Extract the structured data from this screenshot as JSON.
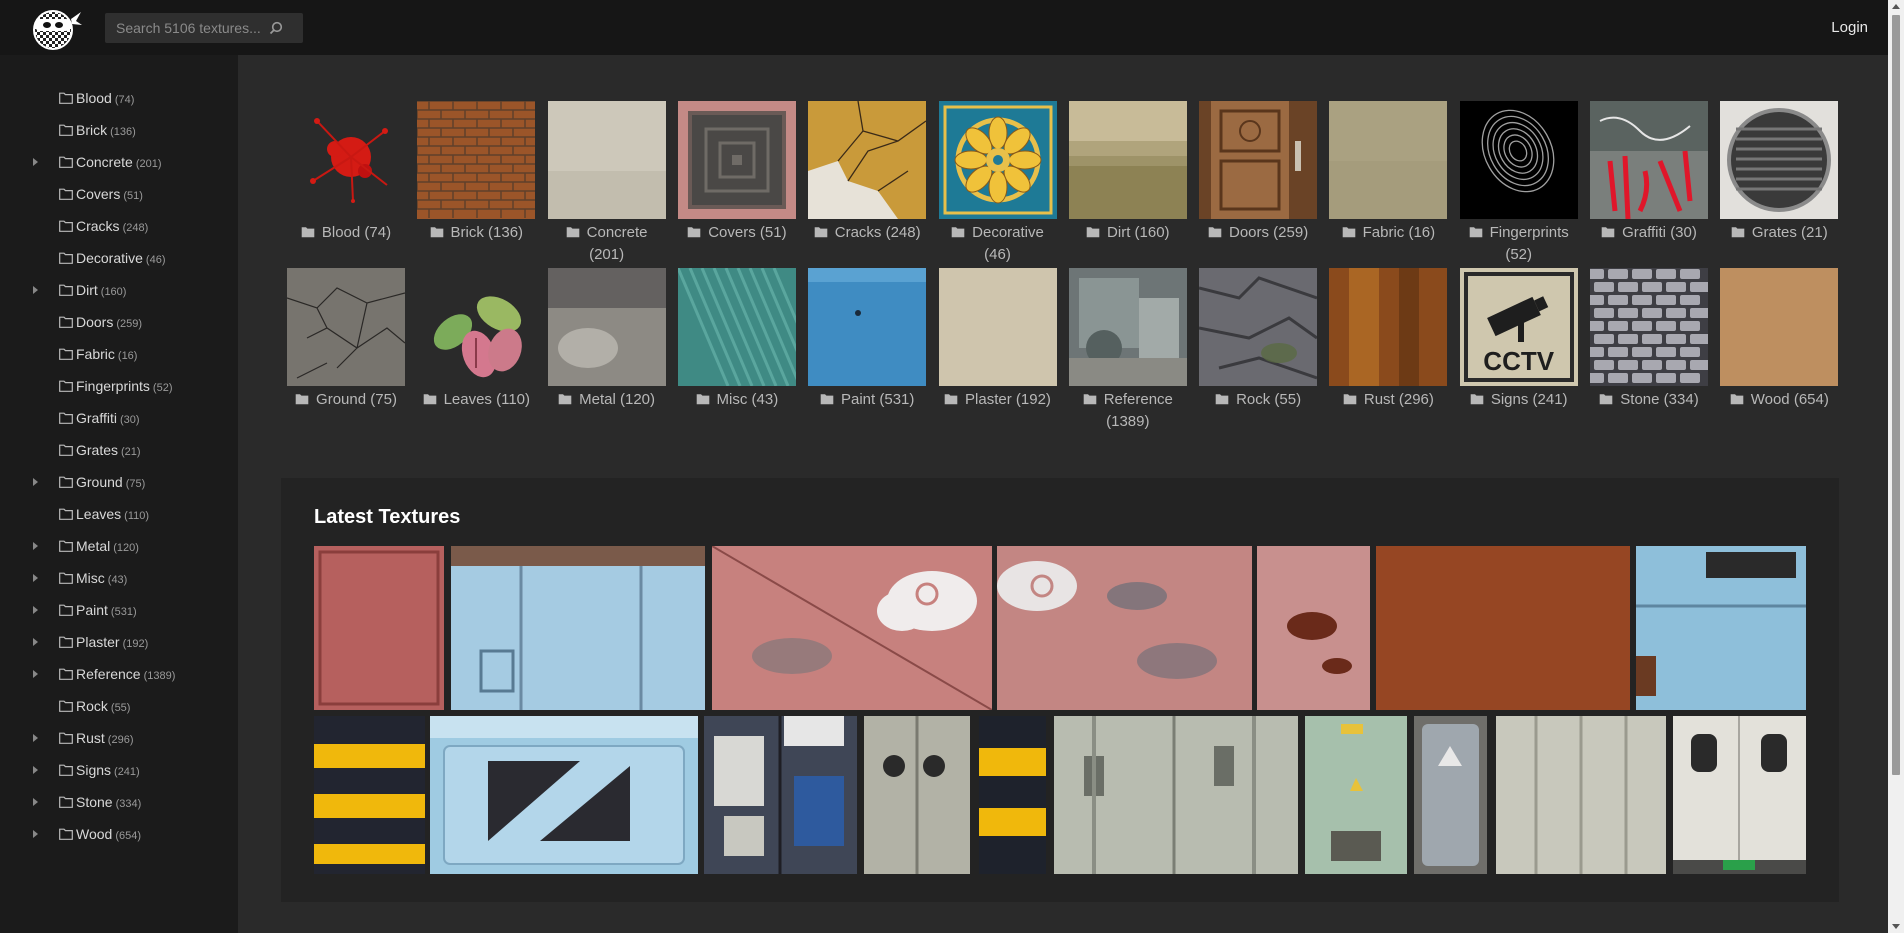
{
  "header": {
    "logo_name": "ninja-checker-logo",
    "search_placeholder": "Search 5106 textures...",
    "login_label": "Login"
  },
  "sidebar": {
    "items": [
      {
        "label": "Blood",
        "count": "(74)",
        "expandable": false
      },
      {
        "label": "Brick",
        "count": "(136)",
        "expandable": false
      },
      {
        "label": "Concrete",
        "count": "(201)",
        "expandable": true
      },
      {
        "label": "Covers",
        "count": "(51)",
        "expandable": false
      },
      {
        "label": "Cracks",
        "count": "(248)",
        "expandable": false
      },
      {
        "label": "Decorative",
        "count": "(46)",
        "expandable": false
      },
      {
        "label": "Dirt",
        "count": "(160)",
        "expandable": true
      },
      {
        "label": "Doors",
        "count": "(259)",
        "expandable": false
      },
      {
        "label": "Fabric",
        "count": "(16)",
        "expandable": false
      },
      {
        "label": "Fingerprints",
        "count": "(52)",
        "expandable": false
      },
      {
        "label": "Graffiti",
        "count": "(30)",
        "expandable": false
      },
      {
        "label": "Grates",
        "count": "(21)",
        "expandable": false
      },
      {
        "label": "Ground",
        "count": "(75)",
        "expandable": true
      },
      {
        "label": "Leaves",
        "count": "(110)",
        "expandable": false
      },
      {
        "label": "Metal",
        "count": "(120)",
        "expandable": true
      },
      {
        "label": "Misc",
        "count": "(43)",
        "expandable": true
      },
      {
        "label": "Paint",
        "count": "(531)",
        "expandable": true
      },
      {
        "label": "Plaster",
        "count": "(192)",
        "expandable": true
      },
      {
        "label": "Reference",
        "count": "(1389)",
        "expandable": true
      },
      {
        "label": "Rock",
        "count": "(55)",
        "expandable": false
      },
      {
        "label": "Rust",
        "count": "(296)",
        "expandable": true
      },
      {
        "label": "Signs",
        "count": "(241)",
        "expandable": true
      },
      {
        "label": "Stone",
        "count": "(334)",
        "expandable": true
      },
      {
        "label": "Wood",
        "count": "(654)",
        "expandable": true
      }
    ]
  },
  "categories": [
    {
      "label": "Blood",
      "count": "(74)",
      "thumb": "blood-splat"
    },
    {
      "label": "Brick",
      "count": "(136)",
      "thumb": "brick-wall"
    },
    {
      "label": "Concrete",
      "count": "(201)",
      "thumb": "concrete"
    },
    {
      "label": "Covers",
      "count": "(51)",
      "thumb": "manhole-cover"
    },
    {
      "label": "Cracks",
      "count": "(248)",
      "thumb": "cracked-paint"
    },
    {
      "label": "Decorative",
      "count": "(46)",
      "thumb": "ornament-tile"
    },
    {
      "label": "Dirt",
      "count": "(160)",
      "thumb": "dirty-wall"
    },
    {
      "label": "Doors",
      "count": "(259)",
      "thumb": "wooden-door"
    },
    {
      "label": "Fabric",
      "count": "(16)",
      "thumb": "fabric"
    },
    {
      "label": "Fingerprints",
      "count": "(52)",
      "thumb": "fingerprint"
    },
    {
      "label": "Graffiti",
      "count": "(30)",
      "thumb": "graffiti"
    },
    {
      "label": "Grates",
      "count": "(21)",
      "thumb": "round-grate"
    },
    {
      "label": "Ground",
      "count": "(75)",
      "thumb": "cracked-ground"
    },
    {
      "label": "Leaves",
      "count": "(110)",
      "thumb": "leaf"
    },
    {
      "label": "Metal",
      "count": "(120)",
      "thumb": "grunge-metal"
    },
    {
      "label": "Misc",
      "count": "(43)",
      "thumb": "teal-streaks"
    },
    {
      "label": "Paint",
      "count": "(531)",
      "thumb": "blue-paint"
    },
    {
      "label": "Plaster",
      "count": "(192)",
      "thumb": "plaster"
    },
    {
      "label": "Reference",
      "count": "(1389)",
      "thumb": "machinery"
    },
    {
      "label": "Rock",
      "count": "(55)",
      "thumb": "rock"
    },
    {
      "label": "Rust",
      "count": "(296)",
      "thumb": "rust"
    },
    {
      "label": "Signs",
      "count": "(241)",
      "thumb": "cctv-sign"
    },
    {
      "label": "Stone",
      "count": "(334)",
      "thumb": "stone-wall"
    },
    {
      "label": "Wood",
      "count": "(654)",
      "thumb": "plywood"
    }
  ],
  "cctv_sign_text": "CCTV",
  "latest": {
    "title": "Latest Textures",
    "items": [
      "pink-worn-panel",
      "light-blue-metal-doors",
      "pink-cloud-panel",
      "pink-cloud-panel-2",
      "pink-peeling-paint",
      "rust-sheet",
      "blue-rusty-panel",
      "yellow-black-stripes",
      "blue-vent-box",
      "sticker-covered-doors",
      "gray-vent-doors",
      "yellow-black-stripes-narrow",
      "white-container-latches",
      "green-fuse-box",
      "gray-electrical-box",
      "white-container-doors",
      "white-truck-doors"
    ]
  }
}
